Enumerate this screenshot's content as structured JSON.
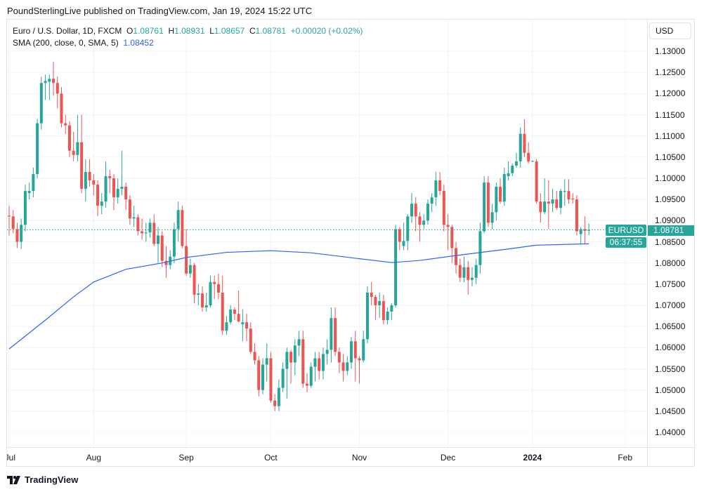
{
  "header": {
    "published": "PoundSterlingLive published on TradingView.com, Jan 19, 2024 15:22 UTC"
  },
  "legend": {
    "symbol": "Euro / U.S. Dollar, 1D, FXCM",
    "o_label": "O",
    "o": "1.08761",
    "h_label": "H",
    "h": "1.08931",
    "l_label": "L",
    "l": "1.08657",
    "c_label": "C",
    "c": "1.08781",
    "change": "+0.00020 (+0.02%)",
    "sma_label": "SMA (200, close, 0, SMA, 5)",
    "sma_value": "1.08452"
  },
  "currency": "USD",
  "last_price": {
    "symbol": "EURUSD",
    "price": "1.08781",
    "countdown": "06:37:55"
  },
  "footer": {
    "brand": "TradingView"
  },
  "colors": {
    "up": "#26a69a",
    "down": "#ef5350",
    "sma": "#2962ff",
    "grid": "#f0f3fa"
  },
  "chart_data": {
    "type": "candlestick",
    "title": "Euro / U.S. Dollar, 1D, FXCM",
    "ylim": [
      1.04,
      1.13
    ],
    "yticks": [
      "1.13000",
      "1.12500",
      "1.12000",
      "1.11500",
      "1.11000",
      "1.10500",
      "1.10000",
      "1.09500",
      "1.09000",
      "1.08500",
      "1.08000",
      "1.07500",
      "1.07000",
      "1.06500",
      "1.06000",
      "1.05500",
      "1.05000",
      "1.04500",
      "1.04000"
    ],
    "xticks": [
      {
        "label": "Jul",
        "date": "2023-07-03"
      },
      {
        "label": "Aug",
        "date": "2023-08-01"
      },
      {
        "label": "Sep",
        "date": "2023-09-01"
      },
      {
        "label": "Oct",
        "date": "2023-10-02"
      },
      {
        "label": "Nov",
        "date": "2023-11-01"
      },
      {
        "label": "Dec",
        "date": "2023-12-01"
      },
      {
        "label": "2024",
        "date": "2024-01-01",
        "bold": true
      },
      {
        "label": "Feb",
        "date": "2024-02-01"
      }
    ],
    "grid": true,
    "candles_columns": [
      "date",
      "open",
      "high",
      "low",
      "close"
    ],
    "candles": [
      [
        "2023-07-03",
        1.0912,
        1.0935,
        1.0865,
        1.091
      ],
      [
        "2023-07-04",
        1.091,
        1.0925,
        1.087,
        1.088
      ],
      [
        "2023-07-05",
        1.088,
        1.0895,
        1.0835,
        1.085
      ],
      [
        "2023-07-06",
        1.085,
        1.0905,
        1.0833,
        1.089
      ],
      [
        "2023-07-07",
        1.089,
        1.0985,
        1.0875,
        1.097
      ],
      [
        "2023-07-10",
        1.0965,
        1.099,
        1.095,
        1.097
      ],
      [
        "2023-07-11",
        1.097,
        1.1025,
        1.0955,
        1.101
      ],
      [
        "2023-07-12",
        1.101,
        1.114,
        1.1,
        1.113
      ],
      [
        "2023-07-13",
        1.113,
        1.124,
        1.1115,
        1.1225
      ],
      [
        "2023-07-14",
        1.1225,
        1.1245,
        1.1185,
        1.123
      ],
      [
        "2023-07-17",
        1.1228,
        1.1245,
        1.1185,
        1.1235
      ],
      [
        "2023-07-18",
        1.1235,
        1.1275,
        1.1195,
        1.1225
      ],
      [
        "2023-07-19",
        1.1225,
        1.124,
        1.1165,
        1.12
      ],
      [
        "2023-07-20",
        1.12,
        1.1215,
        1.112,
        1.113
      ],
      [
        "2023-07-21",
        1.113,
        1.115,
        1.1105,
        1.1125
      ],
      [
        "2023-07-24",
        1.1125,
        1.1135,
        1.105,
        1.1065
      ],
      [
        "2023-07-25",
        1.1065,
        1.111,
        1.104,
        1.1055
      ],
      [
        "2023-07-26",
        1.1055,
        1.115,
        1.104,
        1.1085
      ],
      [
        "2023-07-27",
        1.1085,
        1.115,
        1.0965,
        1.0975
      ],
      [
        "2023-07-28",
        1.0975,
        1.1045,
        1.0945,
        1.1015
      ],
      [
        "2023-07-31",
        1.1015,
        1.1045,
        1.098,
        1.0995
      ],
      [
        "2023-08-01",
        1.0995,
        1.101,
        1.096,
        1.0985
      ],
      [
        "2023-08-02",
        1.0985,
        1.0995,
        1.091,
        1.0935
      ],
      [
        "2023-08-03",
        1.0935,
        1.0965,
        1.0915,
        1.0945
      ],
      [
        "2023-08-04",
        1.0945,
        1.104,
        1.093,
        1.1005
      ],
      [
        "2023-08-07",
        1.1005,
        1.102,
        1.0965,
        1.1
      ],
      [
        "2023-08-08",
        1.1,
        1.101,
        1.0925,
        1.0955
      ],
      [
        "2023-08-09",
        1.0955,
        1.1,
        1.094,
        1.0975
      ],
      [
        "2023-08-10",
        1.0975,
        1.1065,
        1.096,
        1.098
      ],
      [
        "2023-08-11",
        1.098,
        1.099,
        1.0925,
        1.095
      ],
      [
        "2023-08-14",
        1.095,
        1.096,
        1.089,
        1.0905
      ],
      [
        "2023-08-15",
        1.0905,
        1.0935,
        1.0885,
        1.0908
      ],
      [
        "2023-08-16",
        1.0908,
        1.0915,
        1.0865,
        1.0875
      ],
      [
        "2023-08-17",
        1.0875,
        1.0905,
        1.0855,
        1.087
      ],
      [
        "2023-08-18",
        1.087,
        1.0895,
        1.085,
        1.0872
      ],
      [
        "2023-08-21",
        1.0872,
        1.0905,
        1.086,
        1.0895
      ],
      [
        "2023-08-22",
        1.0895,
        1.0915,
        1.084,
        1.0845
      ],
      [
        "2023-08-23",
        1.0845,
        1.0885,
        1.08,
        1.0865
      ],
      [
        "2023-08-24",
        1.0865,
        1.0875,
        1.079,
        1.0805
      ],
      [
        "2023-08-25",
        1.0805,
        1.084,
        1.0765,
        1.0795
      ],
      [
        "2023-08-28",
        1.0795,
        1.083,
        1.0785,
        1.0815
      ],
      [
        "2023-08-29",
        1.0815,
        1.0895,
        1.08,
        1.088
      ],
      [
        "2023-08-30",
        1.088,
        1.0945,
        1.085,
        1.0925
      ],
      [
        "2023-08-31",
        1.0925,
        1.0935,
        1.0835,
        1.084
      ],
      [
        "2023-09-01",
        1.084,
        1.088,
        1.077,
        1.0775
      ],
      [
        "2023-09-04",
        1.0775,
        1.081,
        1.0765,
        1.0795
      ],
      [
        "2023-09-05",
        1.0795,
        1.08,
        1.0705,
        1.0725
      ],
      [
        "2023-09-06",
        1.0725,
        1.075,
        1.07,
        1.0728
      ],
      [
        "2023-09-07",
        1.0728,
        1.0745,
        1.0685,
        1.0695
      ],
      [
        "2023-09-08",
        1.0695,
        1.073,
        1.0685,
        1.07
      ],
      [
        "2023-09-11",
        1.07,
        1.077,
        1.0695,
        1.0755
      ],
      [
        "2023-09-12",
        1.0755,
        1.077,
        1.0715,
        1.075
      ],
      [
        "2023-09-13",
        1.075,
        1.0775,
        1.0715,
        1.073
      ],
      [
        "2023-09-14",
        1.073,
        1.077,
        1.063,
        1.064
      ],
      [
        "2023-09-15",
        1.064,
        1.0675,
        1.063,
        1.066
      ],
      [
        "2023-09-18",
        1.066,
        1.07,
        1.0655,
        1.069
      ],
      [
        "2023-09-19",
        1.069,
        1.0695,
        1.0665,
        1.068
      ],
      [
        "2023-09-20",
        1.068,
        1.0735,
        1.066,
        1.0662
      ],
      [
        "2023-09-21",
        1.0655,
        1.069,
        1.0615,
        1.066
      ],
      [
        "2023-09-22",
        1.066,
        1.068,
        1.0615,
        1.0645
      ],
      [
        "2023-09-25",
        1.0645,
        1.066,
        1.0585,
        1.059
      ],
      [
        "2023-09-26",
        1.059,
        1.061,
        1.056,
        1.057
      ],
      [
        "2023-09-27",
        1.057,
        1.058,
        1.0485,
        1.05
      ],
      [
        "2023-09-28",
        1.05,
        1.0575,
        1.049,
        1.056
      ],
      [
        "2023-09-29",
        1.056,
        1.061,
        1.052,
        1.0575
      ],
      [
        "2023-10-02",
        1.0575,
        1.059,
        1.047,
        1.0475
      ],
      [
        "2023-10-03",
        1.0475,
        1.049,
        1.045,
        1.0462
      ],
      [
        "2023-10-04",
        1.0462,
        1.0525,
        1.045,
        1.0505
      ],
      [
        "2023-10-05",
        1.0505,
        1.0565,
        1.0495,
        1.055
      ],
      [
        "2023-10-06",
        1.055,
        1.06,
        1.048,
        1.059
      ],
      [
        "2023-10-09",
        1.059,
        1.0595,
        1.0515,
        1.0565
      ],
      [
        "2023-10-10",
        1.0565,
        1.062,
        1.0535,
        1.0605
      ],
      [
        "2023-10-11",
        1.0605,
        1.064,
        1.058,
        1.062
      ],
      [
        "2023-10-12",
        1.062,
        1.064,
        1.0505,
        1.0515
      ],
      [
        "2023-10-13",
        1.0515,
        1.054,
        1.0495,
        1.051
      ],
      [
        "2023-10-16",
        1.051,
        1.0565,
        1.0505,
        1.0555
      ],
      [
        "2023-10-17",
        1.0555,
        1.059,
        1.052,
        1.0575
      ],
      [
        "2023-10-18",
        1.0575,
        1.059,
        1.0525,
        1.0545
      ],
      [
        "2023-10-19",
        1.0545,
        1.06,
        1.0525,
        1.0585
      ],
      [
        "2023-10-20",
        1.0585,
        1.062,
        1.056,
        1.0595
      ],
      [
        "2023-10-23",
        1.0595,
        1.0695,
        1.0565,
        1.067
      ],
      [
        "2023-10-24",
        1.067,
        1.0695,
        1.058,
        1.059
      ],
      [
        "2023-10-25",
        1.059,
        1.06,
        1.054,
        1.0565
      ],
      [
        "2023-10-26",
        1.0565,
        1.0585,
        1.052,
        1.0545
      ],
      [
        "2023-10-27",
        1.0545,
        1.058,
        1.0535,
        1.0565
      ],
      [
        "2023-10-30",
        1.0565,
        1.0625,
        1.055,
        1.0615
      ],
      [
        "2023-10-31",
        1.0615,
        1.064,
        1.052,
        1.0575
      ],
      [
        "2023-11-01",
        1.0575,
        1.058,
        1.0515,
        1.057
      ],
      [
        "2023-11-02",
        1.057,
        1.064,
        1.0565,
        1.062
      ],
      [
        "2023-11-03",
        1.062,
        1.0745,
        1.061,
        1.073
      ],
      [
        "2023-11-06",
        1.073,
        1.0755,
        1.07,
        1.072
      ],
      [
        "2023-11-07",
        1.072,
        1.0725,
        1.0665,
        1.07
      ],
      [
        "2023-11-08",
        1.07,
        1.073,
        1.067,
        1.071
      ],
      [
        "2023-11-09",
        1.071,
        1.0725,
        1.0655,
        1.0665
      ],
      [
        "2023-11-10",
        1.0665,
        1.0695,
        1.0655,
        1.0685
      ],
      [
        "2023-11-13",
        1.0685,
        1.0705,
        1.0665,
        1.07
      ],
      [
        "2023-11-14",
        1.07,
        1.089,
        1.0695,
        1.088
      ],
      [
        "2023-11-15",
        1.088,
        1.0885,
        1.083,
        1.085
      ],
      [
        "2023-11-16",
        1.084,
        1.0895,
        1.083,
        1.0852
      ],
      [
        "2023-11-17",
        1.0852,
        1.0915,
        1.083,
        1.091
      ],
      [
        "2023-11-20",
        1.091,
        1.0965,
        1.0895,
        1.094
      ],
      [
        "2023-11-21",
        1.094,
        1.0955,
        1.0875,
        1.091
      ],
      [
        "2023-11-22",
        1.091,
        1.092,
        1.085,
        1.089
      ],
      [
        "2023-11-23",
        1.089,
        1.0915,
        1.088,
        1.09
      ],
      [
        "2023-11-24",
        1.09,
        1.095,
        1.089,
        1.094
      ],
      [
        "2023-11-27",
        1.094,
        1.0965,
        1.092,
        1.0955
      ],
      [
        "2023-11-28",
        1.0955,
        1.1015,
        1.0935,
        1.0995
      ],
      [
        "2023-11-29",
        1.0995,
        1.1015,
        1.096,
        1.097
      ],
      [
        "2023-11-30",
        1.097,
        1.0985,
        1.0875,
        1.089
      ],
      [
        "2023-12-01",
        1.089,
        1.0915,
        1.083,
        1.0885
      ],
      [
        "2023-12-04",
        1.0885,
        1.089,
        1.08,
        1.0835
      ],
      [
        "2023-12-05",
        1.0835,
        1.085,
        1.0775,
        1.0795
      ],
      [
        "2023-12-06",
        1.0795,
        1.081,
        1.0755,
        1.0765
      ],
      [
        "2023-12-07",
        1.0765,
        1.0815,
        1.0755,
        1.079
      ],
      [
        "2023-12-08",
        1.079,
        1.0805,
        1.0725,
        1.076
      ],
      [
        "2023-12-11",
        1.076,
        1.079,
        1.0745,
        1.0765
      ],
      [
        "2023-12-12",
        1.0765,
        1.081,
        1.075,
        1.0795
      ],
      [
        "2023-12-13",
        1.0795,
        1.0895,
        1.0775,
        1.0875
      ],
      [
        "2023-12-14",
        1.0875,
        1.1005,
        1.087,
        1.099
      ],
      [
        "2023-12-15",
        1.099,
        1.1005,
        1.0885,
        1.0895
      ],
      [
        "2023-12-18",
        1.0895,
        1.094,
        1.088,
        1.092
      ],
      [
        "2023-12-19",
        1.092,
        1.099,
        1.09,
        1.098
      ],
      [
        "2023-12-20",
        1.098,
        1.1,
        1.094,
        1.0945
      ],
      [
        "2023-12-21",
        1.0945,
        1.1025,
        1.0935,
        1.101
      ],
      [
        "2023-12-22",
        1.1005,
        1.104,
        1.0995,
        1.1012
      ],
      [
        "2023-12-25",
        1.1012,
        1.1035,
        1.1005,
        1.103
      ],
      [
        "2023-12-26",
        1.103,
        1.106,
        1.1025,
        1.104
      ],
      [
        "2023-12-27",
        1.104,
        1.112,
        1.1025,
        1.1105
      ],
      [
        "2023-12-28",
        1.1105,
        1.114,
        1.105,
        1.106
      ],
      [
        "2023-12-29",
        1.106,
        1.1085,
        1.1035,
        1.104
      ],
      [
        "2024-01-01",
        1.104,
        1.1042,
        1.1038,
        1.1041
      ],
      [
        "2024-01-02",
        1.104,
        1.1045,
        1.094,
        1.0945
      ],
      [
        "2024-01-03",
        1.0945,
        1.0965,
        1.0895,
        1.092
      ],
      [
        "2024-01-04",
        1.092,
        1.1,
        1.0915,
        1.0945
      ],
      [
        "2024-01-05",
        1.0945,
        1.0995,
        1.088,
        1.094
      ],
      [
        "2024-01-08",
        1.094,
        1.0975,
        1.092,
        1.095
      ],
      [
        "2024-01-09",
        1.095,
        1.097,
        1.0925,
        1.093
      ],
      [
        "2024-01-10",
        1.093,
        1.0975,
        1.0915,
        1.097
      ],
      [
        "2024-01-11",
        1.0968,
        1.0998,
        1.0935,
        1.097
      ],
      [
        "2024-01-12",
        1.097,
        1.0998,
        1.094,
        1.095
      ],
      [
        "2024-01-15",
        1.0952,
        1.0965,
        1.094,
        1.095
      ],
      [
        "2024-01-16",
        1.095,
        1.096,
        1.0865,
        1.0875
      ],
      [
        "2024-01-17",
        1.0868,
        1.0885,
        1.0845,
        1.088
      ],
      [
        "2024-01-18",
        1.088,
        1.091,
        1.0845,
        1.0876
      ],
      [
        "2024-01-19",
        1.08761,
        1.08931,
        1.08657,
        1.08781
      ]
    ],
    "sma": {
      "name": "SMA (200, close, 0, SMA, 5)",
      "points": [
        [
          "2023-07-03",
          1.0597
        ],
        [
          "2023-07-14",
          1.0665
        ],
        [
          "2023-07-25",
          1.072
        ],
        [
          "2023-08-01",
          1.0755
        ],
        [
          "2023-08-11",
          1.0785
        ],
        [
          "2023-08-24",
          1.08
        ],
        [
          "2023-09-01",
          1.0813
        ],
        [
          "2023-09-15",
          1.0825
        ],
        [
          "2023-10-02",
          1.0829
        ],
        [
          "2023-10-16",
          1.0824
        ],
        [
          "2023-11-01",
          1.081
        ],
        [
          "2023-11-13",
          1.0801
        ],
        [
          "2023-11-22",
          1.0806
        ],
        [
          "2023-12-07",
          1.082
        ],
        [
          "2023-12-22",
          1.0833
        ],
        [
          "2024-01-02",
          1.0842
        ],
        [
          "2024-01-19",
          1.08452
        ]
      ]
    }
  }
}
